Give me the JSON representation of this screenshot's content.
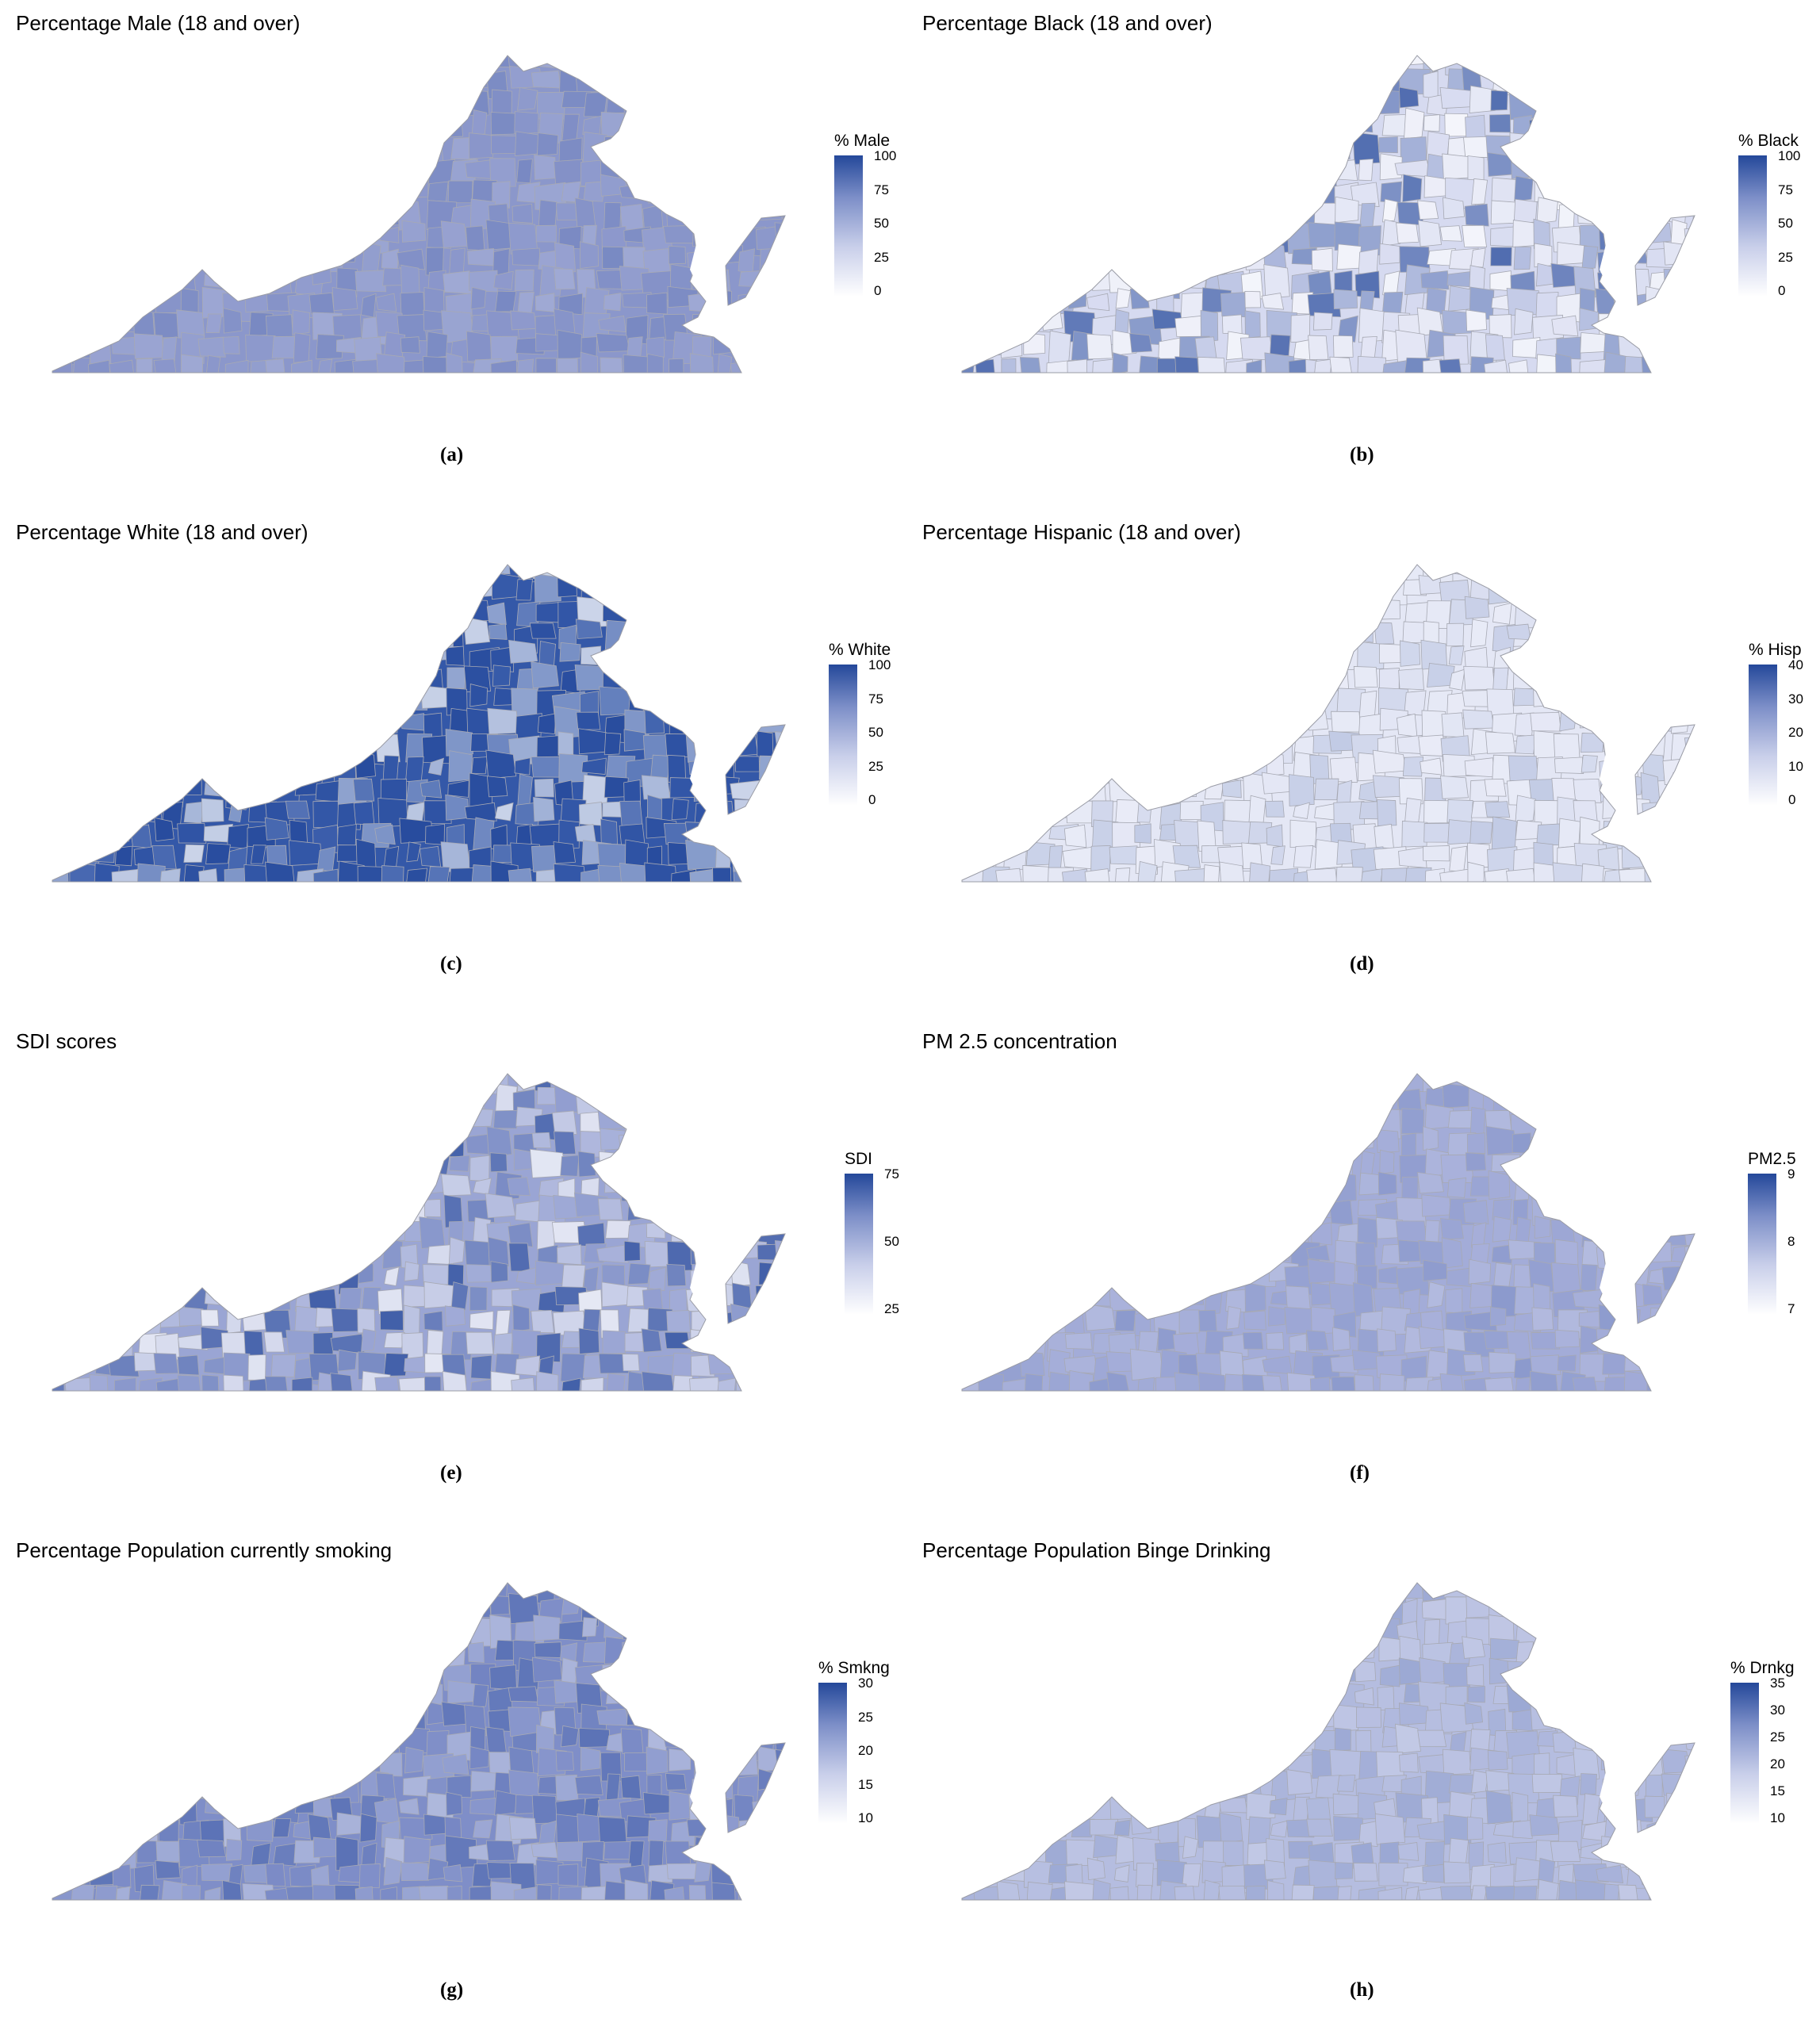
{
  "panels": [
    {
      "id": "a",
      "title": "Percentage Male (18 and over)",
      "caption": "(a)",
      "legend": {
        "title": "% Male",
        "ticks": [
          "100",
          "75",
          "50",
          "25",
          "0"
        ]
      },
      "palette": {
        "fill": "#8b97cb",
        "variation": "low"
      },
      "colors": {
        "low": "#ffffff",
        "high": "#24489a"
      }
    },
    {
      "id": "b",
      "title": "Percentage Black (18 and over)",
      "caption": "(b)",
      "legend": {
        "title": "% Black",
        "ticks": [
          "100",
          "75",
          "50",
          "25",
          "0"
        ]
      },
      "palette": {
        "fill": "#d6daf0",
        "variation": "high"
      },
      "colors": {
        "low": "#ffffff",
        "high": "#24489a"
      }
    },
    {
      "id": "c",
      "title": "Percentage White (18 and over)",
      "caption": "(c)",
      "legend": {
        "title": "% White",
        "ticks": [
          "100",
          "75",
          "50",
          "25",
          "0"
        ]
      },
      "palette": {
        "fill": "#3458a8",
        "variation": "high"
      },
      "colors": {
        "low": "#ffffff",
        "high": "#24489a"
      }
    },
    {
      "id": "d",
      "title": "Percentage Hispanic (18 and over)",
      "caption": "(d)",
      "legend": {
        "title": "% Hisp",
        "ticks": [
          "40",
          "30",
          "20",
          "10",
          "0"
        ]
      },
      "palette": {
        "fill": "#e4e7f5",
        "variation": "low"
      },
      "colors": {
        "low": "#ffffff",
        "high": "#24489a"
      }
    },
    {
      "id": "e",
      "title": "SDI scores",
      "caption": "(e)",
      "legend": {
        "title": "SDI",
        "ticks": [
          "75",
          "50",
          "25"
        ]
      },
      "palette": {
        "fill": "#9aa5d4",
        "variation": "high"
      },
      "colors": {
        "low": "#ffffff",
        "high": "#24489a"
      }
    },
    {
      "id": "f",
      "title": "PM 2.5 concentration",
      "caption": "(f)",
      "legend": {
        "title": "PM2.5",
        "ticks": [
          "9",
          "8",
          "7"
        ]
      },
      "palette": {
        "fill": "#a3acd8",
        "variation": "low"
      },
      "colors": {
        "low": "#ffffff",
        "high": "#24489a"
      }
    },
    {
      "id": "g",
      "title": "Percentage Population currently smoking",
      "caption": "(g)",
      "legend": {
        "title": "% Smkng",
        "ticks": [
          "30",
          "25",
          "20",
          "15",
          "10"
        ]
      },
      "palette": {
        "fill": "#7f8ec8",
        "variation": "mid"
      },
      "colors": {
        "low": "#ffffff",
        "high": "#24489a"
      }
    },
    {
      "id": "h",
      "title": "Percentage Population Binge Drinking",
      "caption": "(h)",
      "legend": {
        "title": "% Drnkg",
        "ticks": [
          "35",
          "30",
          "25",
          "20",
          "15",
          "10"
        ]
      },
      "palette": {
        "fill": "#b5bde0",
        "variation": "low"
      },
      "colors": {
        "low": "#ffffff",
        "high": "#24489a"
      }
    }
  ]
}
